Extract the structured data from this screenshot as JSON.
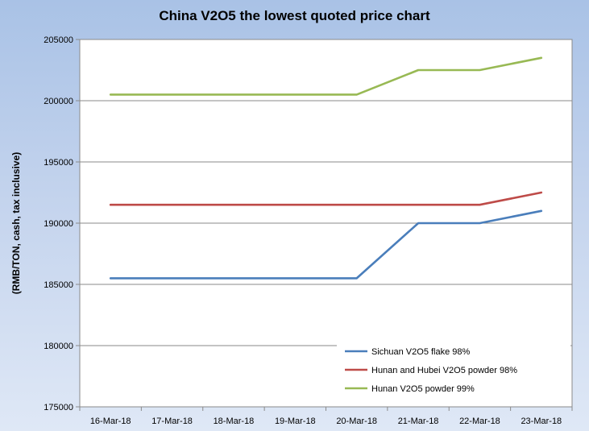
{
  "chart_data": {
    "type": "line",
    "title": "China V2O5 the lowest quoted price chart",
    "xlabel": "",
    "ylabel": "(RMB/TON, cash, tax inclusive)",
    "ylim": [
      175000,
      205000
    ],
    "yticks": [
      "175000",
      "180000",
      "185000",
      "190000",
      "195000",
      "200000",
      "205000"
    ],
    "categories": [
      "16-Mar-18",
      "17-Mar-18",
      "18-Mar-18",
      "19-Mar-18",
      "20-Mar-18",
      "21-Mar-18",
      "22-Mar-18",
      "23-Mar-18"
    ],
    "grid": true,
    "legend": "bottom-right",
    "series": [
      {
        "name": "Sichuan V2O5 flake 98%",
        "color": "#4a7ebb",
        "values": [
          185500,
          185500,
          185500,
          185500,
          185500,
          190000,
          190000,
          191000
        ]
      },
      {
        "name": "Hunan and Hubei V2O5 powder 98%",
        "color": "#be4b48",
        "values": [
          191500,
          191500,
          191500,
          191500,
          191500,
          191500,
          191500,
          192500
        ]
      },
      {
        "name": "Hunan V2O5 powder 99%",
        "color": "#98b954",
        "values": [
          200500,
          200500,
          200500,
          200500,
          200500,
          202500,
          202500,
          203500
        ]
      }
    ]
  }
}
